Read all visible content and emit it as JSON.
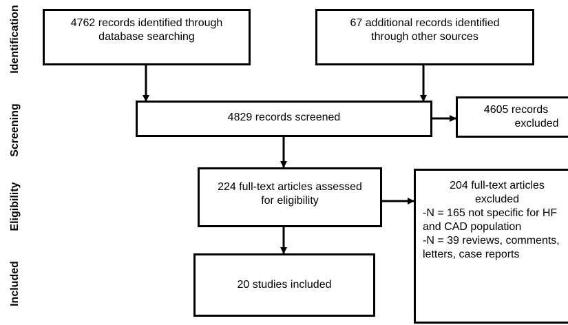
{
  "phases": {
    "identification": "Identification",
    "screening": "Screening",
    "eligibility": "Eligibility",
    "included": "Included"
  },
  "boxes": {
    "database": {
      "line1": "4762 records identified through",
      "line2": "database searching"
    },
    "other_sources": {
      "line1": "67 additional records identified",
      "line2": "through other sources"
    },
    "screened": {
      "text": "4829 records screened"
    },
    "excluded_screen": {
      "line1": "4605 records",
      "line2": "excluded"
    },
    "full_text": {
      "line1": "224 full-text articles assessed",
      "line2": "for eligibility"
    },
    "excluded_full": {
      "line1": "204 full-text articles",
      "line2": "excluded",
      "line3": "-N = 165 not specific for HF",
      "line4": "and CAD population",
      "line5": "-N = 39 reviews, comments,",
      "line6": "letters, case reports"
    },
    "included": {
      "text": "20 studies included"
    }
  }
}
